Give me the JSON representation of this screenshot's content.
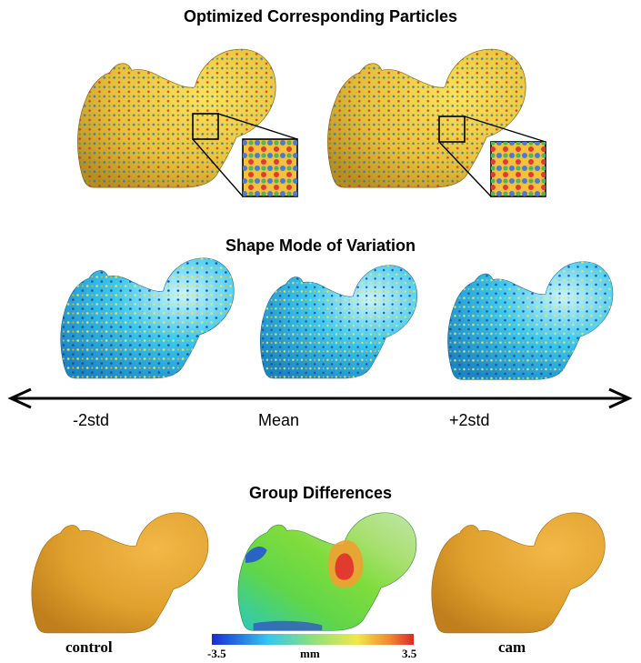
{
  "sections": {
    "particles": {
      "title": "Optimized Corresponding Particles"
    },
    "modes": {
      "title": "Shape Mode of Variation",
      "labels": [
        "-2std",
        "Mean",
        "+2std"
      ]
    },
    "groups": {
      "title": "Group Differences",
      "left_label": "control",
      "right_label": "cam",
      "colorbar": {
        "min": "-3.5",
        "unit": "mm",
        "max": "3.5"
      }
    }
  },
  "colors": {
    "bone_yellow": "#e8c13a",
    "bone_blue": "#2ec0ea",
    "bone_orange": "#e0a02c"
  }
}
